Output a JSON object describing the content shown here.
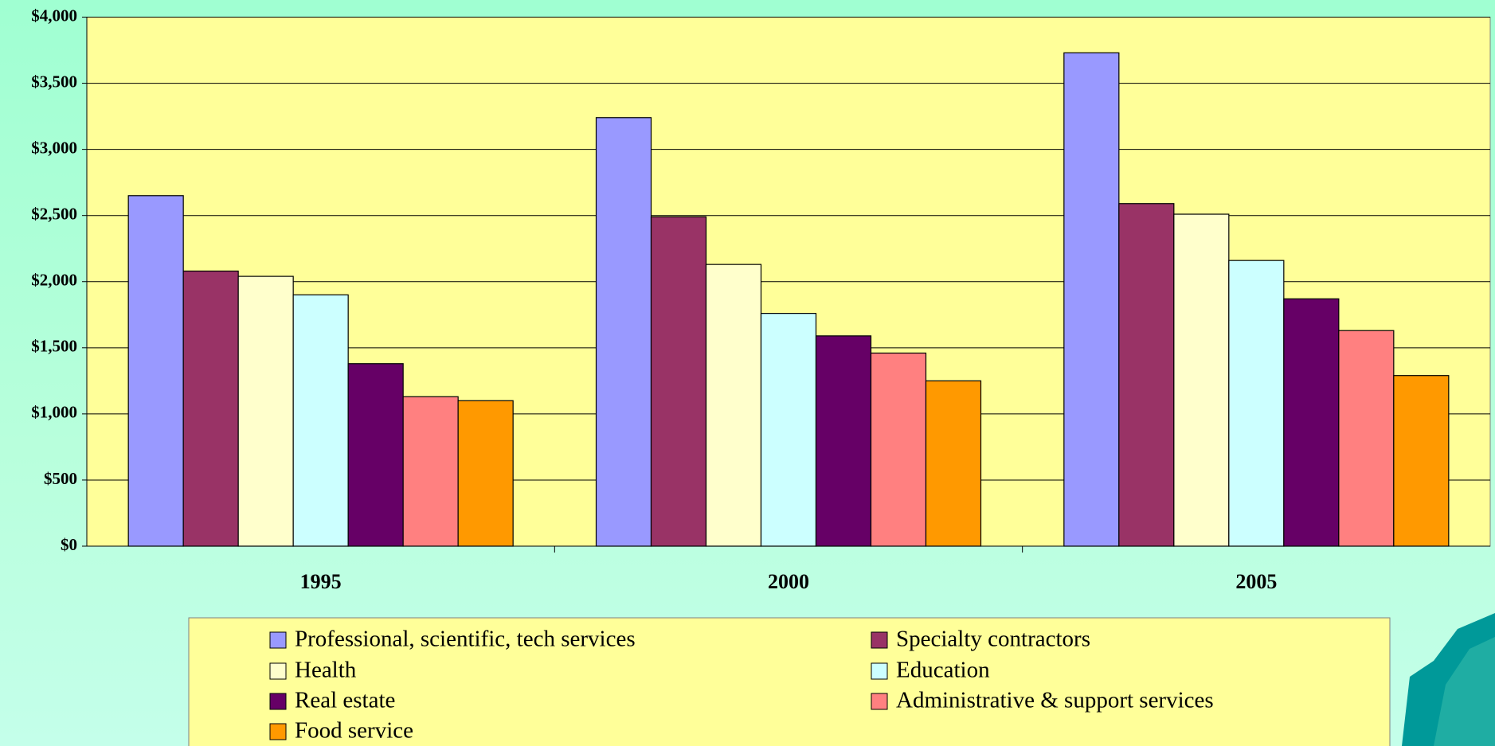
{
  "chart_data": {
    "type": "bar",
    "categories": [
      "1995",
      "2000",
      "2005"
    ],
    "series": [
      {
        "name": "Professional, scientific, tech services",
        "color": "#9999ff",
        "values": [
          2650,
          3240,
          3730
        ]
      },
      {
        "name": "Specialty contractors",
        "color": "#993366",
        "values": [
          2080,
          2490,
          2590
        ]
      },
      {
        "name": "Health",
        "color": "#ffffcc",
        "values": [
          2040,
          2130,
          2510
        ]
      },
      {
        "name": "Education",
        "color": "#ccffff",
        "values": [
          1900,
          1760,
          2160
        ]
      },
      {
        "name": "Real estate",
        "color": "#660066",
        "values": [
          1380,
          1590,
          1870
        ]
      },
      {
        "name": "Administrative & support services",
        "color": "#ff8080",
        "values": [
          1130,
          1460,
          1630
        ]
      },
      {
        "name": "Food service",
        "color": "#ff9900",
        "values": [
          1100,
          1250,
          1290
        ]
      }
    ],
    "ylim": [
      0,
      4000
    ],
    "yticks": [
      {
        "value": 0,
        "label": "$0"
      },
      {
        "value": 500,
        "label": "$500"
      },
      {
        "value": 1000,
        "label": "$1,000"
      },
      {
        "value": 1500,
        "label": "$1,500"
      },
      {
        "value": 2000,
        "label": "$2,000"
      },
      {
        "value": 2500,
        "label": "$2,500"
      },
      {
        "value": 3000,
        "label": "$3,000"
      },
      {
        "value": 3500,
        "label": "$3,500"
      },
      {
        "value": 4000,
        "label": "$4,000"
      }
    ],
    "grid": true
  }
}
